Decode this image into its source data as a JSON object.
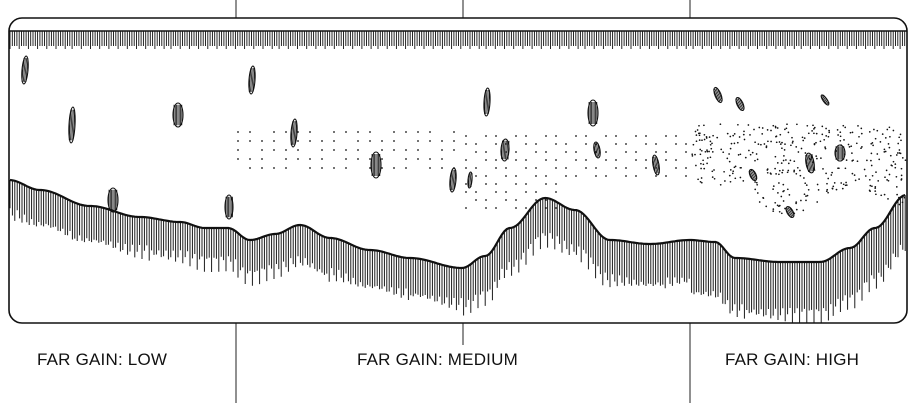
{
  "panels": [
    {
      "id": "low",
      "caption": "FAR GAIN: LOW"
    },
    {
      "id": "medium",
      "caption": "FAR GAIN: MEDIUM"
    },
    {
      "id": "high",
      "caption": "FAR GAIN: HIGH"
    }
  ],
  "colors": {
    "ink": "#111111",
    "background": "#ffffff"
  }
}
